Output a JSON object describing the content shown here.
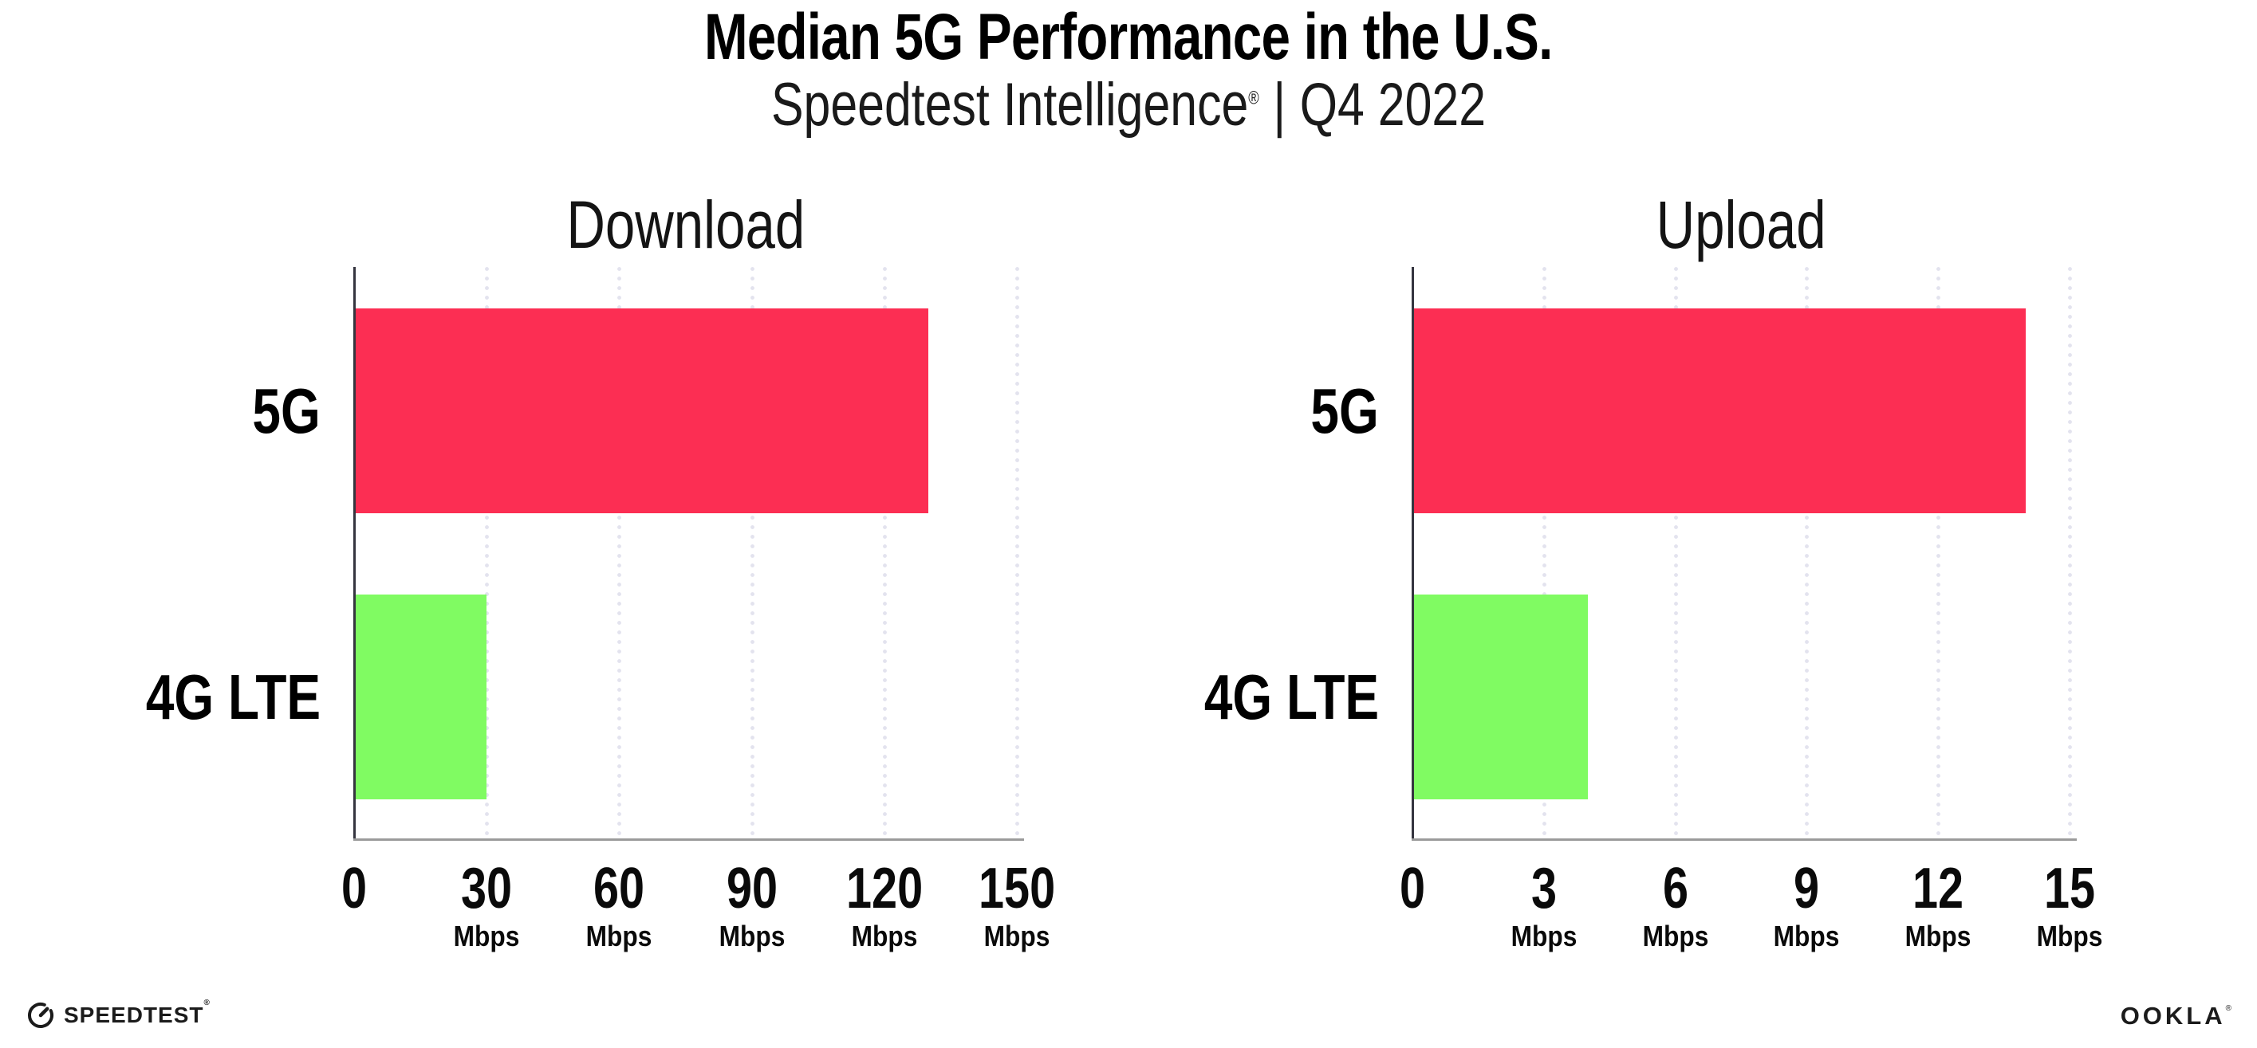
{
  "header": {
    "title": "Median 5G Performance in the U.S.",
    "subtitle": {
      "brand": "Speedtest Intelligence",
      "reg_mark": "®",
      "separator": "|",
      "period": "Q4 2022"
    }
  },
  "chart_data": [
    {
      "type": "bar",
      "orientation": "horizontal",
      "title": "Download",
      "categories": [
        "5G",
        "4G LTE"
      ],
      "values": [
        130,
        30
      ],
      "unit": "Mbps",
      "xlabel": "",
      "xlim": [
        0,
        150
      ],
      "xticks": [
        0,
        30,
        60,
        90,
        120,
        150
      ],
      "bar_colors": [
        "#fc2e53",
        "#80fb62"
      ],
      "grid": "dotted-vertical",
      "legend": "none"
    },
    {
      "type": "bar",
      "orientation": "horizontal",
      "title": "Upload",
      "categories": [
        "5G",
        "4G LTE"
      ],
      "values": [
        14,
        4
      ],
      "unit": "Mbps",
      "xlabel": "",
      "xlim": [
        0,
        15
      ],
      "xticks": [
        0,
        3,
        6,
        9,
        12,
        15
      ],
      "bar_colors": [
        "#fc2e53",
        "#80fb62"
      ],
      "grid": "dotted-vertical",
      "legend": "none"
    }
  ],
  "colors": {
    "bar_5g": "#fc2e53",
    "bar_4g_lte": "#80fb62",
    "gridline": "#e3e3ee",
    "axis_y": "#35353f",
    "axis_x": "#9b9b9b",
    "text": "#000000",
    "background": "#ffffff"
  },
  "footer": {
    "speedtest_label": "SPEEDTEST",
    "speedtest_mark": "®",
    "ookla_label": "OOKLA",
    "ookla_mark": "®"
  }
}
